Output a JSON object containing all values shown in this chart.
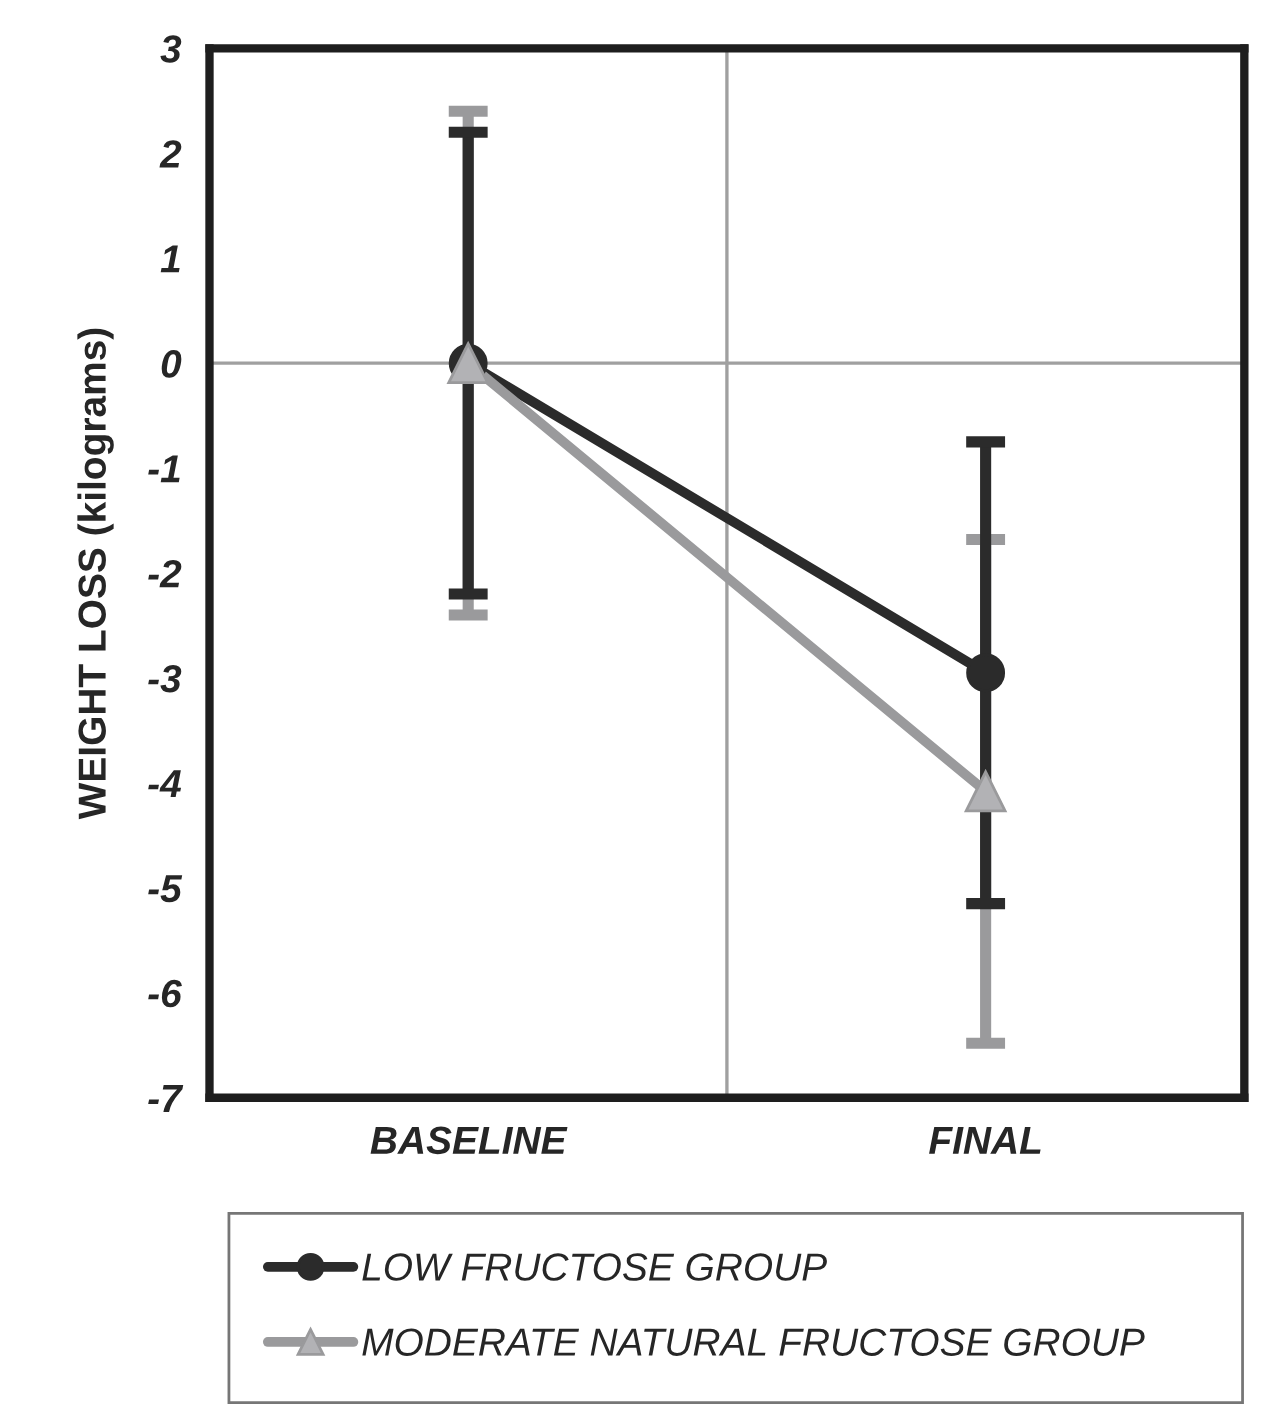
{
  "chart_data": {
    "type": "line",
    "ylabel": "WEIGHT LOSS (kilograms)",
    "categories": [
      "BASELINE",
      "FINAL"
    ],
    "series": [
      {
        "name": "LOW FRUCTOSE GROUP",
        "color": "#2b2b2b",
        "values": [
          0,
          -2.95
        ],
        "errors": [
          2.2,
          2.2
        ],
        "marker": "circle"
      },
      {
        "name": "MODERATE NATURAL FRUCTOSE GROUP",
        "color": "#9a9a9c",
        "values": [
          0,
          -4.08
        ],
        "errors": [
          2.4,
          2.4
        ],
        "marker": "triangle"
      }
    ],
    "ylim": [
      -7,
      3
    ],
    "yticks": [
      -7,
      -6,
      -5,
      -4,
      -3,
      -2,
      -1,
      0,
      1,
      2,
      3
    ],
    "ref_lines": [
      {
        "axis": "y",
        "value": 0,
        "color": "#a0a0a0"
      }
    ],
    "grid": "x",
    "legend": "bottom",
    "line_style": "solid"
  }
}
